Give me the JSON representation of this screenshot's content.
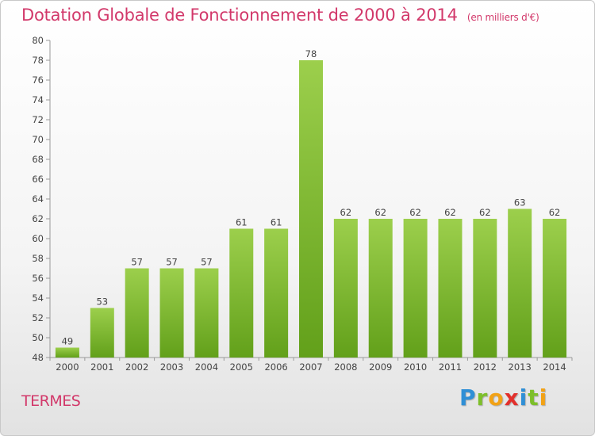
{
  "header": {
    "title": "Dotation Globale de Fonctionnement de 2000 à 2014",
    "subtitle": "(en milliers d'€)"
  },
  "footer": {
    "commune": "TERMES",
    "logo_letters": [
      {
        "char": "P",
        "color": "#2f8fd6"
      },
      {
        "char": "r",
        "color": "#7dbf2a"
      },
      {
        "char": "o",
        "color": "#f2a216"
      },
      {
        "char": "x",
        "color": "#e2302c"
      },
      {
        "char": "i",
        "color": "#2f8fd6"
      },
      {
        "char": "t",
        "color": "#7dbf2a"
      },
      {
        "char": "i",
        "color": "#f2a216"
      }
    ]
  },
  "chart_data": {
    "type": "bar",
    "categories": [
      "2000",
      "2001",
      "2002",
      "2003",
      "2004",
      "2005",
      "2006",
      "2007",
      "2008",
      "2009",
      "2010",
      "2011",
      "2012",
      "2013",
      "2014"
    ],
    "values": [
      49,
      53,
      57,
      57,
      57,
      61,
      61,
      78,
      62,
      62,
      62,
      62,
      62,
      63,
      62
    ],
    "ylim": [
      48,
      80
    ],
    "yticks": [
      48,
      50,
      52,
      54,
      56,
      58,
      60,
      62,
      64,
      66,
      68,
      70,
      72,
      74,
      76,
      78,
      80
    ],
    "grid": false,
    "bar_color_top": "#9ccf4c",
    "bar_color_bottom": "#62a01a",
    "label_color": "#444444"
  }
}
